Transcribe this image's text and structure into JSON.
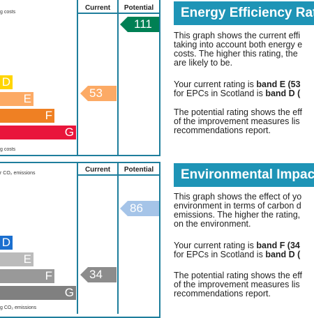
{
  "energy": {
    "columns": {
      "current": "Current",
      "potential": "Potential"
    },
    "top_caption": "g costs",
    "bottom_caption": "g costs",
    "bands": [
      {
        "letter": "D",
        "color": "#ffd500"
      },
      {
        "letter": "E",
        "color": "#fcaa65"
      },
      {
        "letter": "F",
        "color": "#ef8023"
      },
      {
        "letter": "G",
        "color": "#e9153b"
      }
    ],
    "current": {
      "value": "53",
      "color": "#fcaa65"
    },
    "potential": {
      "value": "111",
      "color": "#008054"
    },
    "header": "Energy Efficiency Rat",
    "para1": [
      "This graph shows the current effi",
      "taking into account both energy e",
      "costs. The higher this rating, the",
      "are likely to be."
    ],
    "para2_line1_prefix": "Your current rating is ",
    "para2_line1_bold": "band E (53",
    "para2_line2_prefix": "for EPCs in Scotland is ",
    "para2_line2_bold": "band D (",
    "para3": [
      "The potential rating shows the eff",
      "of the improvement measures lis",
      "recommendations report."
    ]
  },
  "environmental": {
    "columns": {
      "current": "Current",
      "potential": "Potential"
    },
    "top_caption": "r CO₂ emissions",
    "bottom_caption": "g CO₂ emissions",
    "bands": [
      {
        "letter": "D",
        "color": "#1b6fcf"
      },
      {
        "letter": "E",
        "color": "#bbbbbb"
      },
      {
        "letter": "F",
        "color": "#999999"
      },
      {
        "letter": "G",
        "color": "#808080"
      }
    ],
    "current": {
      "value": "34",
      "color": "#8c8c8c"
    },
    "potential": {
      "value": "86",
      "color": "#a5c4e8"
    },
    "header": "Environmental Impact",
    "para1": [
      "This graph shows the effect of yo",
      "environment in terms of carbon d",
      "emissions. The higher the rating,",
      "on the environment."
    ],
    "para2_line1_prefix": "Your current rating is ",
    "para2_line1_bold": "band F (34",
    "para2_line2_prefix": "for EPCs in Scotland is ",
    "para2_line2_bold": "band D (",
    "para3": [
      "The potential rating shows the eff",
      "of the improvement measures lis",
      "recommendations report."
    ]
  },
  "colors": {
    "border": "#1e7e9c",
    "header_bg": "#1e94b6"
  }
}
